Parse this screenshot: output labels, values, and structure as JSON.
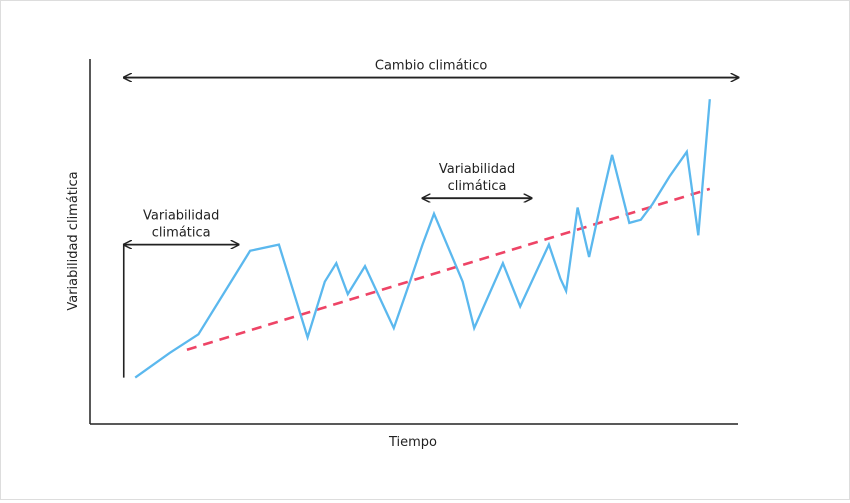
{
  "chart_data": {
    "type": "line",
    "xlabel": "Tiempo",
    "ylabel": "Variabilidad climática",
    "x": [
      0,
      6,
      11,
      17,
      20,
      25,
      27,
      30,
      33,
      35,
      37,
      40,
      45,
      48,
      50,
      52,
      57,
      59,
      64,
      67,
      70,
      72,
      74,
      75,
      77,
      79,
      81,
      83,
      86,
      88,
      90,
      93,
      96,
      98,
      100
    ],
    "series": [
      {
        "values": [
          0,
          8,
          14,
          32,
          41,
          43,
          31,
          13,
          31,
          37,
          27,
          36,
          16,
          32,
          43,
          53,
          31,
          16,
          37,
          23,
          35,
          43,
          32,
          28,
          55,
          39,
          56,
          72,
          50,
          51,
          56,
          65,
          73,
          46,
          90
        ]
      }
    ],
    "trend": {
      "x": [
        9,
        100
      ],
      "y": [
        9,
        61
      ],
      "style": "dashed"
    },
    "xlim": [
      -3,
      103
    ],
    "ylim": [
      -15,
      103
    ],
    "annotations": [
      {
        "text": "Cambio climático",
        "x_start": -2,
        "x_end": 105,
        "y": 97
      },
      {
        "text_lines": [
          "Variabilidad",
          "climática"
        ],
        "x_start": -2,
        "x_end": 18,
        "y": 43
      },
      {
        "text_lines": [
          "Variabilidad",
          "climática"
        ],
        "x_start": 50,
        "x_end": 69,
        "y": 58
      }
    ],
    "colors": {
      "series": "#5bb8ee",
      "trend": "#ee4466",
      "axis": "#222222"
    },
    "grid": false,
    "legend": "none"
  }
}
